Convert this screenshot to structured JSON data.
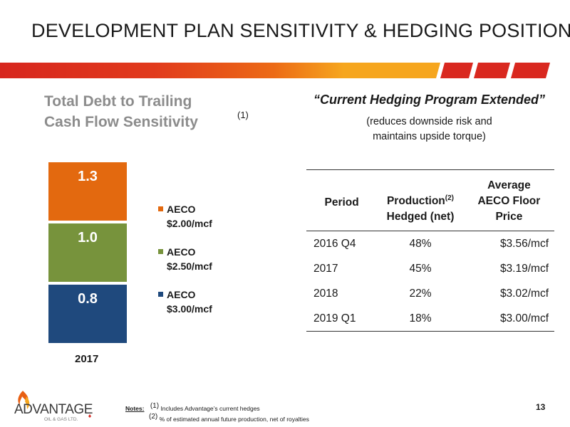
{
  "slide": {
    "title": "DEVELOPMENT PLAN SENSITIVITY & HEDGING POSITIONS",
    "page_number": "13"
  },
  "colors": {
    "band_red": "#d7261e",
    "band_orange": "#e85f12",
    "band_yellow": "#f6a61e",
    "orange": "#e3690f",
    "green": "#77933c",
    "navy": "#1f497d",
    "title_gray": "#8c8c8c"
  },
  "chart_data": {
    "type": "bar",
    "stacked": true,
    "title": "Total Debt to Trailing Cash Flow Sensitivity",
    "footnote_marker": "(1)",
    "categories": [
      "2017"
    ],
    "series": [
      {
        "name": "AECO $3.00/mcf",
        "values": [
          0.8
        ],
        "color": "#1f497d"
      },
      {
        "name": "AECO $2.50/mcf",
        "values": [
          1.0
        ],
        "color": "#77933c"
      },
      {
        "name": "AECO $2.00/mcf",
        "values": [
          1.3
        ],
        "color": "#e3690f"
      }
    ],
    "legend": [
      {
        "line1": "AECO",
        "line2": "$2.00/mcf",
        "color": "#e3690f"
      },
      {
        "line1": "AECO",
        "line2": "$2.50/mcf",
        "color": "#77933c"
      },
      {
        "line1": "AECO",
        "line2": "$3.00/mcf",
        "color": "#1f497d"
      }
    ],
    "legend_position": "right",
    "grid": false
  },
  "hedging": {
    "title": "“Current Hedging Program Extended”",
    "subtitle_line1": "(reduces downside risk and",
    "subtitle_line2": "maintains upside torque)",
    "headers": {
      "period": "Period",
      "production_line1": "Production",
      "production_sup": "(2)",
      "production_line2": "Hedged (net)",
      "floor_line1": "Average",
      "floor_line2": "AECO Floor",
      "floor_line3": "Price"
    },
    "rows": [
      {
        "period": "2016 Q4",
        "hedged": "48%",
        "floor": "$3.56/mcf"
      },
      {
        "period": "2017",
        "hedged": "45%",
        "floor": "$3.19/mcf"
      },
      {
        "period": "2018",
        "hedged": "22%",
        "floor": "$3.02/mcf"
      },
      {
        "period": "2019 Q1",
        "hedged": "18%",
        "floor": "$3.00/mcf"
      }
    ]
  },
  "notes": {
    "label": "Notes:",
    "note1_marker": "(1)",
    "note1": "Includes Advantage’s current hedges",
    "note2_marker": "(2)",
    "note2": "% of estimated annual future production, net of royalties"
  },
  "logo": {
    "name": "ADVANTAGE",
    "sub": "OIL & GAS LTD."
  }
}
